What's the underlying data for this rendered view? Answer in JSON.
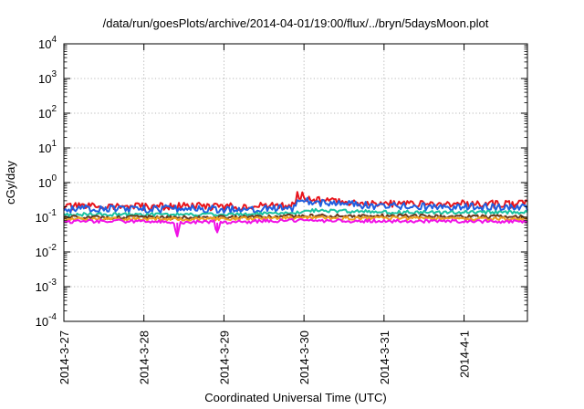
{
  "chart_data": {
    "type": "line",
    "title": "/data/run/goesPlots/archive/2014-04-01/19:00/flux/../bryn/5daysMoon.plot",
    "xlabel": "Coordinated Universal Time (UTC)",
    "ylabel": "cGy/day",
    "yscale": "log",
    "ylim": [
      0.0001,
      10000
    ],
    "xlim": [
      "2014-03-27 00:00",
      "2014-04-01 19:00"
    ],
    "y_ticks": [
      {
        "value": 0.0001,
        "base": "10",
        "exp": "-4"
      },
      {
        "value": 0.001,
        "base": "10",
        "exp": "-3"
      },
      {
        "value": 0.01,
        "base": "10",
        "exp": "-2"
      },
      {
        "value": 0.1,
        "base": "10",
        "exp": "-1"
      },
      {
        "value": 1,
        "base": "10",
        "exp": "0"
      },
      {
        "value": 10,
        "base": "10",
        "exp": "1"
      },
      {
        "value": 100,
        "base": "10",
        "exp": "2"
      },
      {
        "value": 1000,
        "base": "10",
        "exp": "3"
      },
      {
        "value": 10000,
        "base": "10",
        "exp": "4"
      }
    ],
    "x_ticks": [
      {
        "value": "2014-03-27",
        "label": "2014-3-27"
      },
      {
        "value": "2014-03-28",
        "label": "2014-3-28"
      },
      {
        "value": "2014-03-29",
        "label": "2014-3-29"
      },
      {
        "value": "2014-03-30",
        "label": "2014-3-30"
      },
      {
        "value": "2014-03-31",
        "label": "2014-3-31"
      },
      {
        "value": "2014-04-01",
        "label": "2014-4-1"
      }
    ],
    "grid": true,
    "series": [
      {
        "color": "#e8141b",
        "points": [
          [
            "2014-03-27 00:00",
            0.2
          ],
          [
            "2014-03-27 12:00",
            0.21
          ],
          [
            "2014-03-28 00:00",
            0.2
          ],
          [
            "2014-03-28 12:00",
            0.21
          ],
          [
            "2014-03-29 00:00",
            0.2
          ],
          [
            "2014-03-29 12:00",
            0.21
          ],
          [
            "2014-03-29 21:00",
            0.22
          ],
          [
            "2014-03-29 22:00",
            0.45
          ],
          [
            "2014-03-30 00:00",
            0.4
          ],
          [
            "2014-03-30 03:00",
            0.32
          ],
          [
            "2014-03-30 12:00",
            0.28
          ],
          [
            "2014-03-31 00:00",
            0.25
          ],
          [
            "2014-03-31 12:00",
            0.24
          ],
          [
            "2014-04-01 00:00",
            0.24
          ],
          [
            "2014-04-01 19:00",
            0.24
          ]
        ]
      },
      {
        "color": "#1f5fe0",
        "points": [
          [
            "2014-03-27 00:00",
            0.17
          ],
          [
            "2014-03-27 12:00",
            0.18
          ],
          [
            "2014-03-28 00:00",
            0.17
          ],
          [
            "2014-03-28 12:00",
            0.18
          ],
          [
            "2014-03-29 00:00",
            0.17
          ],
          [
            "2014-03-29 12:00",
            0.18
          ],
          [
            "2014-03-29 21:00",
            0.19
          ],
          [
            "2014-03-29 22:00",
            0.38
          ],
          [
            "2014-03-30 00:00",
            0.34
          ],
          [
            "2014-03-30 03:00",
            0.27
          ],
          [
            "2014-03-30 12:00",
            0.24
          ],
          [
            "2014-03-31 00:00",
            0.21
          ],
          [
            "2014-03-31 12:00",
            0.2
          ],
          [
            "2014-04-01 00:00",
            0.2
          ],
          [
            "2014-04-01 19:00",
            0.2
          ]
        ]
      },
      {
        "color": "#19c2a0",
        "points": [
          [
            "2014-03-27 00:00",
            0.12
          ],
          [
            "2014-03-28 00:00",
            0.12
          ],
          [
            "2014-03-29 00:00",
            0.12
          ],
          [
            "2014-03-29 21:00",
            0.13
          ],
          [
            "2014-03-30 00:00",
            0.16
          ],
          [
            "2014-03-30 12:00",
            0.15
          ],
          [
            "2014-03-31 00:00",
            0.14
          ],
          [
            "2014-04-01 00:00",
            0.14
          ],
          [
            "2014-04-01 19:00",
            0.14
          ]
        ]
      },
      {
        "color": "#6b3a1e",
        "points": [
          [
            "2014-03-27 00:00",
            0.1
          ],
          [
            "2014-03-28 00:00",
            0.1
          ],
          [
            "2014-03-29 00:00",
            0.1
          ],
          [
            "2014-03-30 00:00",
            0.11
          ],
          [
            "2014-03-31 00:00",
            0.11
          ],
          [
            "2014-04-01 00:00",
            0.105
          ],
          [
            "2014-04-01 19:00",
            0.105
          ]
        ]
      },
      {
        "color": "#f0a020",
        "points": [
          [
            "2014-03-27 00:00",
            0.09
          ],
          [
            "2014-03-28 00:00",
            0.09
          ],
          [
            "2014-03-29 00:00",
            0.09
          ],
          [
            "2014-03-30 00:00",
            0.095
          ],
          [
            "2014-03-31 00:00",
            0.095
          ],
          [
            "2014-04-01 00:00",
            0.09
          ],
          [
            "2014-04-01 19:00",
            0.09
          ]
        ]
      },
      {
        "color": "#f012e6",
        "points": [
          [
            "2014-03-27 00:00",
            0.075
          ],
          [
            "2014-03-27 12:00",
            0.078
          ],
          [
            "2014-03-28 00:00",
            0.076
          ],
          [
            "2014-03-28 09:00",
            0.07
          ],
          [
            "2014-03-28 10:00",
            0.028
          ],
          [
            "2014-03-28 11:00",
            0.072
          ],
          [
            "2014-03-28 21:00",
            0.074
          ],
          [
            "2014-03-28 22:00",
            0.035
          ],
          [
            "2014-03-28 23:00",
            0.07
          ],
          [
            "2014-03-29 12:00",
            0.078
          ],
          [
            "2014-03-30 00:00",
            0.08
          ],
          [
            "2014-03-30 12:00",
            0.079
          ],
          [
            "2014-03-31 00:00",
            0.078
          ],
          [
            "2014-04-01 00:00",
            0.076
          ],
          [
            "2014-04-01 19:00",
            0.076
          ]
        ]
      }
    ]
  }
}
